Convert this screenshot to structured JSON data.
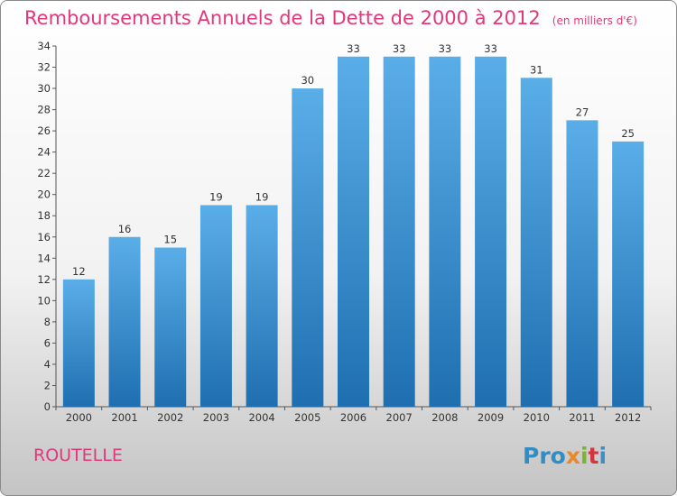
{
  "title": "Remboursements Annuels de la Dette de 2000 à 2012",
  "unit": "(en milliers d'€)",
  "commune": "ROUTELLE",
  "logo": {
    "p1": "Pro",
    "p2": "x",
    "p3": "i",
    "p4": "t",
    "p5": "i"
  },
  "colors": {
    "bar_top": "#5aaee8",
    "bar_bottom": "#1f6fb0",
    "title": "#e4377a"
  },
  "chart_data": {
    "type": "bar",
    "categories": [
      "2000",
      "2001",
      "2002",
      "2003",
      "2004",
      "2005",
      "2006",
      "2007",
      "2008",
      "2009",
      "2010",
      "2011",
      "2012"
    ],
    "values": [
      12,
      16,
      15,
      19,
      19,
      30,
      33,
      33,
      33,
      33,
      31,
      27,
      25
    ],
    "ylim": [
      0,
      34
    ],
    "ytick_step": 2,
    "grid": false,
    "xlabel": "",
    "ylabel": ""
  }
}
